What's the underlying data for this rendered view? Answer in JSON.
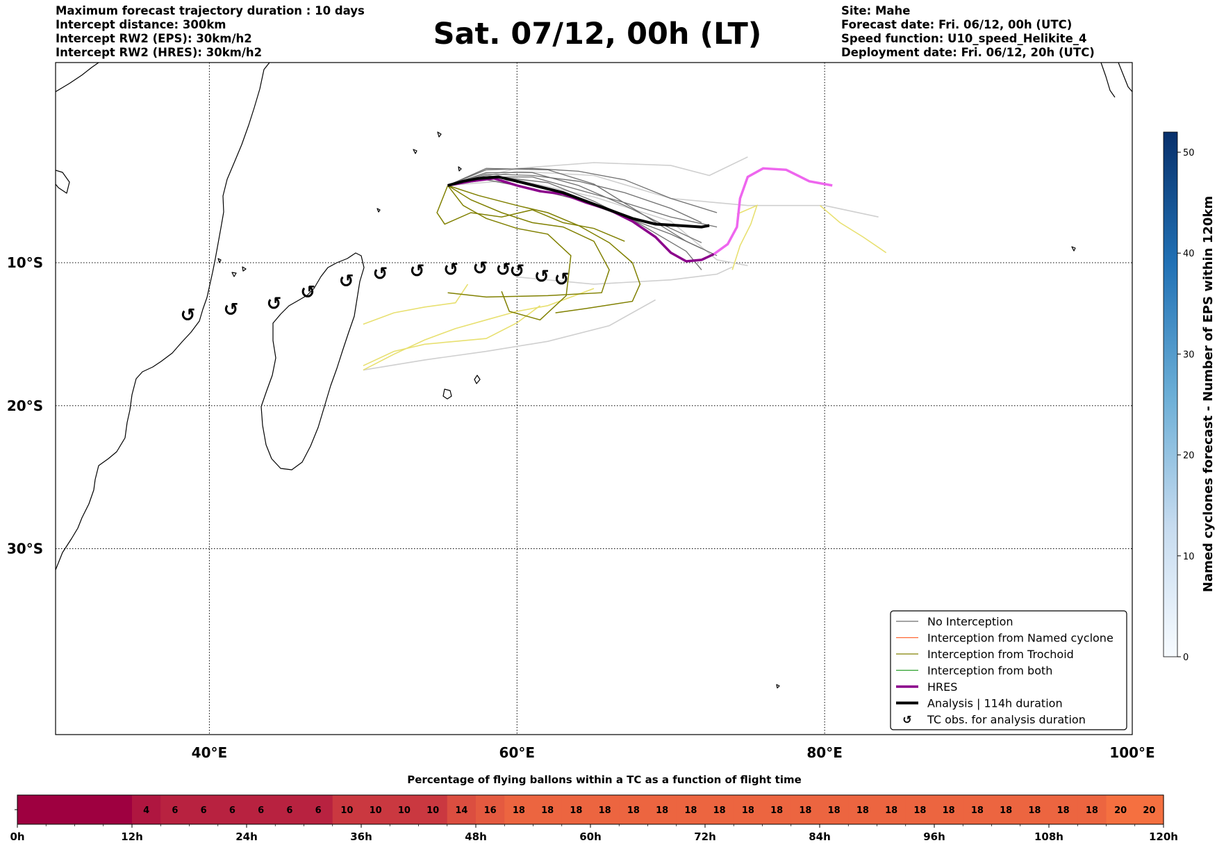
{
  "header": {
    "title": "Sat. 07/12, 00h (LT)",
    "left_lines": [
      "Maximum forecast trajectory duration : 10 days",
      "Intercept distance: 300km",
      "Intercept RW2 (EPS):  30km/h2",
      "Intercept RW2 (HRES): 30km/h2"
    ],
    "right_lines": [
      "Site: Mahe",
      "Forecast date: Fri. 06/12, 00h (UTC)",
      "Speed function: U10_speed_Helikite_4",
      "Deployment date: Fri. 06/12, 20h (UTC)"
    ]
  },
  "colors": {
    "no_interception": "#6e6e6e",
    "named_cyclone": "#ff6633",
    "trochoid": "#808000",
    "both": "#2ca02c",
    "hres": "#8b008b",
    "hres_extension": "#ee66ee",
    "analysis": "#000000",
    "ensemble_light": "#cfcfcf",
    "trochoid_light": "#e8e070",
    "cyclone_bar_low": "#9e0040",
    "cyclone_bar_high": "#f57040"
  },
  "chart_data": [
    {
      "type": "map",
      "lon_range": [
        30,
        100
      ],
      "lat_range": [
        -43,
        4
      ],
      "lon_ticks": [
        40,
        60,
        80,
        100
      ],
      "lon_tick_labels": [
        "40°E",
        "60°E",
        "80°E",
        "100°E"
      ],
      "lat_ticks": [
        -10,
        -20,
        -30
      ],
      "lat_tick_labels": [
        "10°S",
        "20°S",
        "30°S"
      ],
      "grid": true,
      "legend_position": "lower-right",
      "legend": [
        {
          "label": "No Interception",
          "style": "no_interception"
        },
        {
          "label": "Interception from Named cyclone",
          "style": "named_cyclone"
        },
        {
          "label": "Interception from Trochoid",
          "style": "trochoid"
        },
        {
          "label": "Interception from both",
          "style": "both"
        },
        {
          "label": "HRES",
          "style": "hres"
        },
        {
          "label": "Analysis | 114h duration",
          "style": "analysis"
        },
        {
          "label": "TC obs. for analysis duration",
          "style": "tc_symbol"
        }
      ],
      "tc_symbol": "↺",
      "tc_observations": [
        [
          38.6,
          -13.7
        ],
        [
          41.4,
          -13.3
        ],
        [
          44.2,
          -12.9
        ],
        [
          46.4,
          -12.1
        ],
        [
          48.9,
          -11.3
        ],
        [
          51.1,
          -10.8
        ],
        [
          53.5,
          -10.6
        ],
        [
          55.7,
          -10.5
        ],
        [
          57.6,
          -10.4
        ],
        [
          59.1,
          -10.5
        ],
        [
          60.0,
          -10.6
        ],
        [
          61.6,
          -11.0
        ],
        [
          62.9,
          -11.2
        ]
      ],
      "analysis": [
        [
          55.5,
          -4.6
        ],
        [
          56.5,
          -4.3
        ],
        [
          57.5,
          -4.1
        ],
        [
          58.8,
          -4.0
        ],
        [
          60.0,
          -4.3
        ],
        [
          61.5,
          -4.7
        ],
        [
          63.0,
          -5.1
        ],
        [
          64.5,
          -5.7
        ],
        [
          66.0,
          -6.3
        ],
        [
          67.5,
          -6.9
        ],
        [
          69.0,
          -7.3
        ],
        [
          70.5,
          -7.4
        ],
        [
          72.0,
          -7.5
        ],
        [
          72.5,
          -7.4
        ]
      ],
      "hres": [
        [
          55.5,
          -4.6
        ],
        [
          57.0,
          -4.3
        ],
        [
          58.5,
          -4.1
        ],
        [
          60.0,
          -4.6
        ],
        [
          61.5,
          -5.0
        ],
        [
          63.0,
          -5.2
        ],
        [
          64.5,
          -5.8
        ],
        [
          66.0,
          -6.3
        ],
        [
          67.5,
          -7.1
        ],
        [
          69.0,
          -8.2
        ],
        [
          70.0,
          -9.3
        ],
        [
          71.0,
          -9.9
        ],
        [
          72.0,
          -9.8
        ],
        [
          72.8,
          -9.4
        ]
      ],
      "hres_extension": [
        [
          72.8,
          -9.4
        ],
        [
          73.7,
          -8.7
        ],
        [
          74.3,
          -7.5
        ],
        [
          74.5,
          -5.5
        ],
        [
          75.0,
          -4.0
        ],
        [
          76.0,
          -3.4
        ],
        [
          77.5,
          -3.5
        ],
        [
          79.0,
          -4.3
        ],
        [
          80.5,
          -4.6
        ]
      ],
      "ensemble_dark": [
        [
          [
            55.5,
            -4.6
          ],
          [
            58,
            -3.8
          ],
          [
            61,
            -3.9
          ],
          [
            64,
            -4.3
          ],
          [
            67,
            -5.1
          ],
          [
            70,
            -6.2
          ],
          [
            72,
            -7.2
          ]
        ],
        [
          [
            55.5,
            -4.6
          ],
          [
            58,
            -3.5
          ],
          [
            61,
            -3.4
          ],
          [
            64,
            -3.6
          ],
          [
            67,
            -4.2
          ],
          [
            70,
            -5.5
          ],
          [
            73,
            -6.5
          ]
        ],
        [
          [
            55.5,
            -4.6
          ],
          [
            58,
            -4.2
          ],
          [
            61,
            -4.8
          ],
          [
            64,
            -5.6
          ],
          [
            67,
            -6.8
          ],
          [
            70,
            -8.0
          ],
          [
            72,
            -9.0
          ]
        ],
        [
          [
            55.5,
            -4.6
          ],
          [
            58,
            -3.7
          ],
          [
            61,
            -3.7
          ],
          [
            64,
            -4.6
          ],
          [
            67,
            -6.0
          ],
          [
            70,
            -7.6
          ],
          [
            72,
            -8.6
          ]
        ],
        [
          [
            55.5,
            -4.6
          ],
          [
            58,
            -3.4
          ],
          [
            62,
            -3.5
          ],
          [
            65,
            -4.5
          ],
          [
            68,
            -6.5
          ],
          [
            71,
            -8.5
          ],
          [
            73,
            -9.5
          ]
        ],
        [
          [
            55.5,
            -4.6
          ],
          [
            58,
            -4.0
          ],
          [
            61,
            -4.0
          ],
          [
            64,
            -4.9
          ],
          [
            67,
            -5.8
          ],
          [
            70,
            -6.8
          ],
          [
            73,
            -7.5
          ]
        ],
        [
          [
            55.5,
            -4.6
          ],
          [
            58,
            -3.9
          ],
          [
            62,
            -4.4
          ],
          [
            65,
            -5.7
          ],
          [
            68,
            -7.3
          ],
          [
            71,
            -9.2
          ],
          [
            72,
            -10.5
          ]
        ]
      ],
      "ensemble_light": [
        [
          [
            55.5,
            -4.6
          ],
          [
            60,
            -3.4
          ],
          [
            65,
            -3.0
          ],
          [
            70,
            -3.2
          ],
          [
            72.5,
            -3.9
          ],
          [
            75.0,
            -2.6
          ]
        ],
        [
          [
            55.5,
            -4.6
          ],
          [
            60,
            -3.6
          ],
          [
            65,
            -3.9
          ],
          [
            70,
            -5.5
          ],
          [
            75,
            -6.0
          ],
          [
            80,
            -6.0
          ],
          [
            83.5,
            -6.8
          ]
        ],
        [
          [
            55.5,
            -4.6
          ],
          [
            60,
            -4.2
          ],
          [
            65,
            -5.4
          ],
          [
            70,
            -7.1
          ],
          [
            73,
            -9.8
          ],
          [
            75,
            -10.2
          ]
        ],
        [
          [
            60.0,
            -11.0
          ],
          [
            65,
            -11.5
          ],
          [
            70,
            -11.2
          ],
          [
            73,
            -10.8
          ],
          [
            74,
            -10.3
          ]
        ],
        [
          [
            50.0,
            -17.5
          ],
          [
            54,
            -16.8
          ],
          [
            58,
            -16.2
          ],
          [
            62,
            -15.5
          ],
          [
            66,
            -14.4
          ],
          [
            69,
            -12.6
          ]
        ]
      ],
      "trochoid": [
        [
          [
            55.5,
            -4.6
          ],
          [
            54.8,
            -6.5
          ],
          [
            55.3,
            -7.3
          ],
          [
            57,
            -6.5
          ],
          [
            59,
            -6.8
          ],
          [
            61,
            -6.3
          ],
          [
            63,
            -7.2
          ],
          [
            65,
            -7.6
          ],
          [
            67,
            -8.5
          ]
        ],
        [
          [
            55.5,
            -4.6
          ],
          [
            56.5,
            -6.0
          ],
          [
            58,
            -6.9
          ],
          [
            60,
            -7.6
          ],
          [
            62,
            -8.0
          ],
          [
            63.5,
            -9.5
          ],
          [
            63.2,
            -12.3
          ],
          [
            61.5,
            -14.0
          ],
          [
            59.5,
            -13.4
          ],
          [
            59.0,
            -12.0
          ]
        ],
        [
          [
            55.5,
            -4.6
          ],
          [
            57,
            -5.6
          ],
          [
            59,
            -6.5
          ],
          [
            61,
            -7.2
          ],
          [
            63,
            -7.5
          ],
          [
            65,
            -8.5
          ],
          [
            66,
            -10.5
          ],
          [
            65.5,
            -12.1
          ],
          [
            62,
            -12.3
          ],
          [
            58,
            -12.4
          ],
          [
            55.5,
            -12.1
          ]
        ],
        [
          [
            55.5,
            -4.6
          ],
          [
            57.5,
            -5.3
          ],
          [
            60,
            -6.0
          ],
          [
            62,
            -6.5
          ],
          [
            64,
            -7.4
          ],
          [
            66,
            -8.6
          ],
          [
            67.5,
            -10.0
          ],
          [
            68,
            -11.5
          ],
          [
            67.5,
            -12.7
          ],
          [
            64.5,
            -13.2
          ],
          [
            62.5,
            -13.5
          ]
        ]
      ],
      "trochoid_light": [
        [
          [
            74.3,
            -6.6
          ],
          [
            75.6,
            -6.0
          ],
          [
            75.2,
            -7.3
          ],
          [
            74.5,
            -8.8
          ],
          [
            74.0,
            -10.5
          ]
        ],
        [
          [
            79.7,
            -6.0
          ],
          [
            81,
            -7.2
          ],
          [
            82.5,
            -8.2
          ],
          [
            84,
            -9.3
          ]
        ],
        [
          [
            50.0,
            -17.2
          ],
          [
            52,
            -16.2
          ],
          [
            54,
            -15.7
          ],
          [
            56,
            -15.5
          ],
          [
            58,
            -15.3
          ],
          [
            60,
            -14.2
          ],
          [
            61.5,
            -13.0
          ]
        ],
        [
          [
            50.0,
            -14.3
          ],
          [
            52,
            -13.5
          ],
          [
            54,
            -13.1
          ],
          [
            56,
            -12.8
          ],
          [
            56.8,
            -11.5
          ]
        ],
        [
          [
            50.0,
            -17.5
          ],
          [
            52,
            -16.4
          ],
          [
            54,
            -15.4
          ],
          [
            56,
            -14.6
          ],
          [
            58,
            -14.0
          ],
          [
            60,
            -13.4
          ],
          [
            62,
            -13.0
          ],
          [
            65,
            -11.8
          ]
        ]
      ],
      "colorbar": {
        "label": "Named cyclones forecast - Number of EPS within 120km",
        "range": [
          0,
          52
        ],
        "ticks": [
          0,
          10,
          20,
          30,
          40,
          50
        ]
      }
    },
    {
      "type": "heatmap",
      "title": "Percentage of flying ballons within a TC as a function of flight time",
      "step_hours": 3,
      "values": [
        null,
        null,
        null,
        null,
        4,
        6,
        6,
        6,
        6,
        6,
        6,
        10,
        10,
        10,
        10,
        14,
        16,
        18,
        18,
        18,
        18,
        18,
        18,
        18,
        18,
        18,
        18,
        18,
        18,
        18,
        18,
        18,
        18,
        18,
        18,
        18,
        18,
        18,
        20,
        20
      ],
      "x_ticks": [
        "0h",
        "12h",
        "24h",
        "36h",
        "48h",
        "60h",
        "72h",
        "84h",
        "96h",
        "108h",
        "120h"
      ]
    }
  ]
}
